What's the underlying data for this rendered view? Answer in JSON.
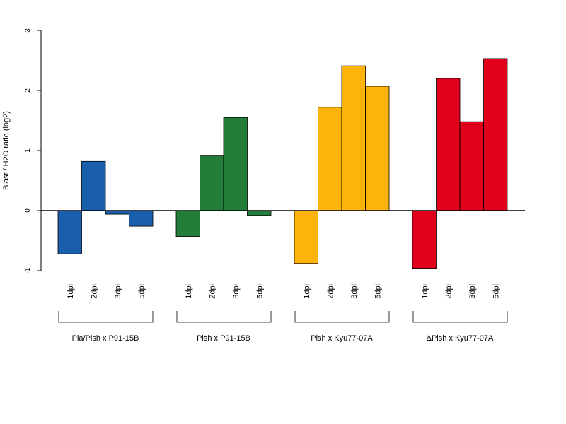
{
  "chart_data": {
    "type": "bar",
    "ylabel": "Blast / H2O ratio (log2)",
    "ylim": [
      -1,
      3
    ],
    "yticks": [
      -1,
      0,
      1,
      2,
      3
    ],
    "ytick_labels": [
      "-1",
      "0",
      "1",
      "2",
      "3"
    ],
    "grid": false,
    "legend": "none",
    "categories": [
      "1dpi",
      "2dpi",
      "3dpi",
      "5dpi"
    ],
    "groups": [
      {
        "label": "Pia/Pish x P91-15B",
        "color": "#1a5fac",
        "values": [
          -0.72,
          0.82,
          -0.06,
          -0.26
        ]
      },
      {
        "label": "Pish x P91-15B",
        "color": "#217d38",
        "values": [
          -0.43,
          0.91,
          1.55,
          -0.08
        ]
      },
      {
        "label": "Pish x Kyu77-07A",
        "color": "#fdb40a",
        "values": [
          -0.88,
          1.72,
          2.41,
          2.07
        ]
      },
      {
        "label": "ΔPish x Kyu77-07A",
        "color": "#e0001b",
        "values": [
          -0.96,
          2.2,
          1.48,
          2.53
        ]
      }
    ]
  }
}
